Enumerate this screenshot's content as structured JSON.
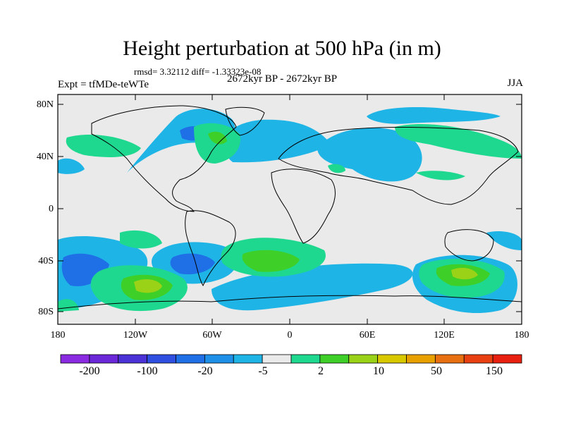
{
  "title": "Height perturbation at 500 hPa (in m)",
  "stats": "rmsd= 3.32112 diff= -1.33323e-08",
  "experiment": "Expt = tfMDe-teWTe",
  "period": "2672kyr BP - 2672kyr BP",
  "season": "JJA",
  "lat_ticks": [
    "80N",
    "40N",
    "0",
    "40S",
    "80S"
  ],
  "lon_ticks": [
    "180",
    "120W",
    "60W",
    "0",
    "60E",
    "120E",
    "180"
  ],
  "colorbar": {
    "colors": [
      "#8a2be2",
      "#6a28d8",
      "#4b32d6",
      "#2e4fe0",
      "#1f6fe6",
      "#1e90e8",
      "#1fb4e6",
      "#eaeaea",
      "#1fd890",
      "#3ecf28",
      "#9ad218",
      "#d8c800",
      "#e8a000",
      "#e87010",
      "#e84010",
      "#e82010"
    ],
    "labels": [
      "-200",
      "-100",
      "-20",
      "-5",
      "2",
      "10",
      "50",
      "150"
    ]
  },
  "colors": {
    "background": "#eaeaea",
    "coast": "#000000"
  }
}
